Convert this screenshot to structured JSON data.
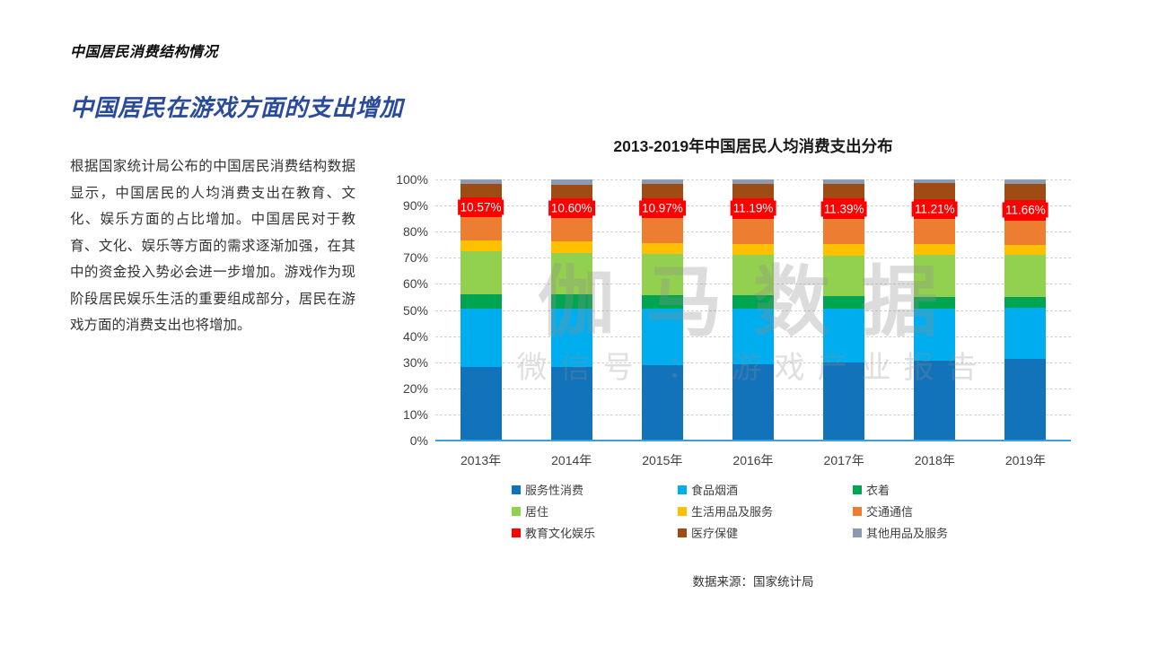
{
  "page": {
    "header": "中国居民消费结构情况",
    "title": "中国居民在游戏方面的支出增加",
    "intro": "根据国家统计局公布的中国居民消费结构数据显示，中国居民的人均消费支出在教育、文化、娱乐方面的占比增加。中国居民对于教育、文化、娱乐等方面的需求逐渐加强，在其中的资金投入势必会进一步增加。游戏作为现阶段居民娱乐生活的重要组成部分，居民在游戏方面的消费支出也将增加。",
    "watermark_line1": "伽马数据",
    "watermark_line2": "微信号 ： 游戏产业报告"
  },
  "chart_data": {
    "type": "bar",
    "variant": "100-percent-stacked-column",
    "title": "2013-2019年中国居民人均消费支出分布",
    "categories": [
      "2013年",
      "2014年",
      "2015年",
      "2016年",
      "2017年",
      "2018年",
      "2019年"
    ],
    "series": [
      {
        "name": "服务性消费",
        "color": "#1272ba",
        "values": [
          39.0,
          39.5,
          40.5,
          41.5,
          42.6,
          44.2,
          45.9
        ]
      },
      {
        "name": "食品烟酒",
        "color": "#00aeef",
        "values": [
          31.2,
          31.0,
          30.6,
          30.1,
          29.3,
          28.4,
          28.2
        ]
      },
      {
        "name": "衣着",
        "color": "#00a551",
        "values": [
          7.8,
          7.6,
          7.4,
          7.0,
          6.8,
          6.5,
          6.2
        ]
      },
      {
        "name": "居住",
        "color": "#92d050",
        "values": [
          22.7,
          22.1,
          21.8,
          21.9,
          22.4,
          23.4,
          23.4
        ]
      },
      {
        "name": "生活用品及服务",
        "color": "#ffc000",
        "values": [
          6.1,
          6.0,
          6.1,
          6.1,
          6.1,
          6.2,
          5.9
        ]
      },
      {
        "name": "交通通信",
        "color": "#ed7d31",
        "values": [
          12.3,
          12.6,
          13.3,
          13.7,
          13.6,
          13.5,
          13.3
        ]
      },
      {
        "name": "教育文化娱乐",
        "color": "#ff0000",
        "values": [
          10.57,
          10.6,
          10.97,
          11.19,
          11.39,
          11.21,
          11.66
        ],
        "data_labels": [
          "10.57%",
          "10.60%",
          "10.97%",
          "11.19%",
          "11.39%",
          "11.21%",
          "11.66%"
        ]
      },
      {
        "name": "医疗保健",
        "color": "#9e4b14",
        "values": [
          6.9,
          7.2,
          7.4,
          7.6,
          7.9,
          8.5,
          8.8
        ]
      },
      {
        "name": "其他用品及服务",
        "color": "#8a9ab1",
        "values": [
          2.5,
          2.9,
          2.5,
          2.4,
          2.5,
          2.2,
          2.6
        ]
      }
    ],
    "note": "values are percent shares; columns rendered normalized to 100% of each column's series sum; only 教育文化娱乐 series shows data labels",
    "y_ticks": [
      "100%",
      "90%",
      "80%",
      "70%",
      "60%",
      "50%",
      "40%",
      "30%",
      "20%",
      "10%",
      "0%"
    ],
    "ylim": [
      0,
      100
    ],
    "grid": "dashed horizontal gridlines every 10%",
    "axis_line_color": "#3d9fd8",
    "legend_position": "bottom, 3 columns x 3 rows",
    "source": "数据来源：国家统计局"
  }
}
